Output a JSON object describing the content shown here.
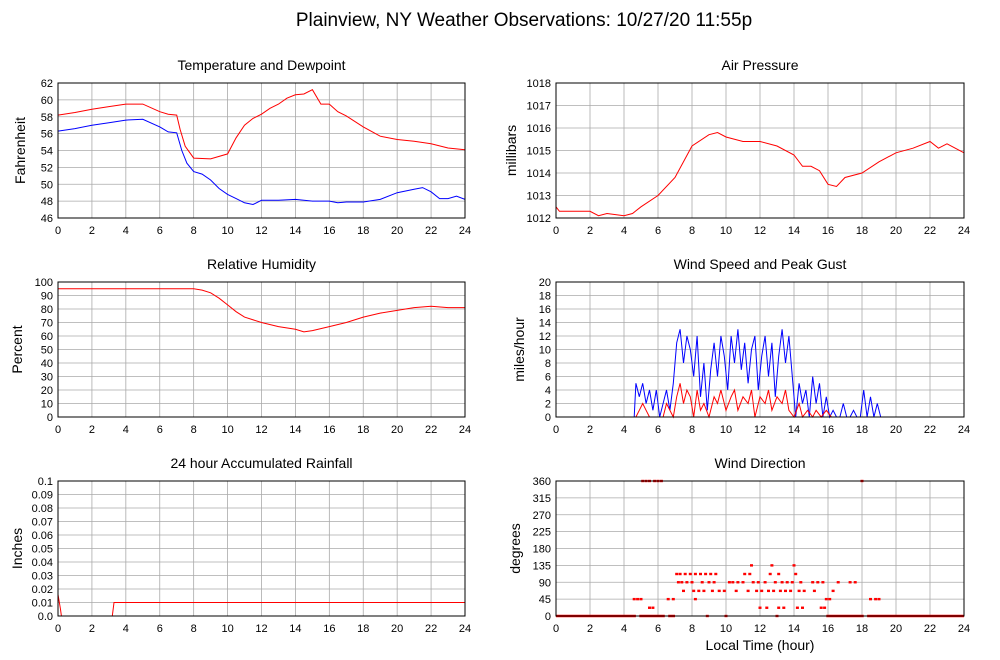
{
  "page_title": "Plainview, NY Weather Observations: 10/27/20 11:55p",
  "x_axis_label": "Local Time (hour)",
  "colors": {
    "red": "#ff0000",
    "blue": "#0000ff",
    "grid": "#aaaaaa",
    "frame": "#000000"
  },
  "chart_data": [
    {
      "id": "temp",
      "type": "line",
      "title": "Temperature and Dewpoint",
      "ylabel": "Fahrenheit",
      "xlim": [
        0,
        24
      ],
      "ylim": [
        46,
        62
      ],
      "xticks": [
        0,
        2,
        4,
        6,
        8,
        10,
        12,
        14,
        16,
        18,
        20,
        22,
        24
      ],
      "yticks": [
        46,
        48,
        50,
        52,
        54,
        56,
        58,
        60,
        62
      ],
      "grid": true,
      "series": [
        {
          "color": "#ff0000",
          "x": [
            0,
            1,
            2,
            3,
            4,
            5,
            6,
            6.5,
            7,
            7.2,
            7.5,
            8,
            9,
            10,
            10.5,
            11,
            11.5,
            12,
            12.5,
            13,
            13.5,
            14,
            14.5,
            15,
            15.5,
            16,
            16.5,
            17,
            18,
            19,
            20,
            21,
            22,
            23,
            24
          ],
          "y": [
            58.2,
            58.5,
            58.9,
            59.2,
            59.5,
            59.5,
            58.6,
            58.3,
            58.2,
            56.5,
            54.5,
            53.1,
            53.0,
            53.6,
            55.5,
            57.0,
            57.8,
            58.3,
            59.0,
            59.5,
            60.2,
            60.6,
            60.7,
            61.2,
            59.5,
            59.5,
            58.6,
            58.1,
            56.8,
            55.7,
            55.3,
            55.1,
            54.8,
            54.3,
            54.1
          ]
        },
        {
          "color": "#0000ff",
          "x": [
            0,
            1,
            2,
            3,
            4,
            5,
            6,
            6.5,
            7,
            7.3,
            7.6,
            8,
            8.5,
            9,
            9.5,
            10,
            10.5,
            11,
            11.5,
            12,
            13,
            14,
            15,
            16,
            16.5,
            17,
            18,
            19,
            20,
            21,
            21.5,
            22,
            22.5,
            23,
            23.5,
            24
          ],
          "y": [
            56.3,
            56.6,
            57.0,
            57.3,
            57.6,
            57.7,
            56.8,
            56.2,
            56.1,
            54.0,
            52.5,
            51.5,
            51.2,
            50.5,
            49.5,
            48.8,
            48.3,
            47.8,
            47.6,
            48.1,
            48.1,
            48.2,
            48.0,
            48.0,
            47.8,
            47.9,
            47.9,
            48.2,
            49.0,
            49.4,
            49.6,
            49.1,
            48.3,
            48.3,
            48.6,
            48.2
          ]
        }
      ]
    },
    {
      "id": "pressure",
      "type": "line",
      "title": "Air Pressure",
      "ylabel": "millibars",
      "xlim": [
        0,
        24
      ],
      "ylim": [
        1012,
        1018
      ],
      "xticks": [
        0,
        2,
        4,
        6,
        8,
        10,
        12,
        14,
        16,
        18,
        20,
        22,
        24
      ],
      "yticks": [
        1012,
        1013,
        1014,
        1015,
        1016,
        1017,
        1018
      ],
      "grid": true,
      "series": [
        {
          "color": "#ff0000",
          "x": [
            0,
            0.2,
            1,
            2,
            2.5,
            3,
            4,
            4.5,
            5,
            6,
            7,
            8,
            9,
            9.5,
            10,
            11,
            12,
            13,
            14,
            14.5,
            15,
            15.5,
            16,
            16.5,
            17,
            18,
            19,
            20,
            21,
            22,
            22.5,
            23,
            24
          ],
          "y": [
            1012.5,
            1012.3,
            1012.3,
            1012.3,
            1012.1,
            1012.2,
            1012.1,
            1012.2,
            1012.5,
            1013.0,
            1013.8,
            1015.2,
            1015.7,
            1015.8,
            1015.6,
            1015.4,
            1015.4,
            1015.2,
            1014.8,
            1014.3,
            1014.3,
            1014.1,
            1013.5,
            1013.4,
            1013.8,
            1014.0,
            1014.5,
            1014.9,
            1015.1,
            1015.4,
            1015.1,
            1015.3,
            1014.9
          ]
        }
      ]
    },
    {
      "id": "humidity",
      "type": "line",
      "title": "Relative Humidity",
      "ylabel": "Percent",
      "xlim": [
        0,
        24
      ],
      "ylim": [
        0,
        100
      ],
      "xticks": [
        0,
        2,
        4,
        6,
        8,
        10,
        12,
        14,
        16,
        18,
        20,
        22,
        24
      ],
      "yticks": [
        0,
        10,
        20,
        30,
        40,
        50,
        60,
        70,
        80,
        90,
        100
      ],
      "grid": true,
      "series": [
        {
          "color": "#ff0000",
          "x": [
            0,
            2,
            4,
            6,
            8,
            8.5,
            9,
            9.5,
            10,
            10.5,
            11,
            12,
            13,
            14,
            14.5,
            15,
            16,
            17,
            18,
            19,
            20,
            21,
            22,
            23,
            24
          ],
          "y": [
            95,
            95,
            95,
            95,
            95,
            94,
            92,
            88,
            83,
            78,
            74,
            70,
            67,
            65,
            63,
            64,
            67,
            70,
            74,
            77,
            79,
            81,
            82,
            81,
            81
          ]
        }
      ]
    },
    {
      "id": "wind",
      "type": "line",
      "title": "Wind Speed and Peak Gust",
      "ylabel": "miles/hour",
      "xlim": [
        0,
        24
      ],
      "ylim": [
        0,
        20
      ],
      "xticks": [
        0,
        2,
        4,
        6,
        8,
        10,
        12,
        14,
        16,
        18,
        20,
        22,
        24
      ],
      "yticks": [
        0,
        2,
        4,
        6,
        8,
        10,
        12,
        14,
        16,
        18,
        20
      ],
      "grid": true,
      "series": [
        {
          "color": "#0000ff",
          "x": [
            0,
            4.6,
            4.7,
            4.9,
            5.1,
            5.3,
            5.5,
            5.7,
            5.9,
            6.1,
            6.3,
            6.5,
            6.7,
            6.9,
            7.1,
            7.3,
            7.5,
            7.7,
            7.9,
            8.1,
            8.3,
            8.5,
            8.7,
            8.9,
            9.1,
            9.3,
            9.5,
            9.7,
            9.9,
            10.1,
            10.3,
            10.5,
            10.7,
            10.9,
            11.1,
            11.3,
            11.5,
            11.7,
            11.9,
            12.1,
            12.3,
            12.5,
            12.7,
            12.9,
            13.1,
            13.3,
            13.5,
            13.7,
            13.9,
            14.1,
            14.3,
            14.5,
            14.7,
            14.9,
            15.1,
            15.3,
            15.5,
            15.7,
            15.9,
            16.1,
            16.3,
            16.5,
            16.7,
            16.9,
            17.1,
            17.3,
            17.5,
            17.7,
            17.9,
            18.1,
            18.3,
            18.5,
            18.7,
            18.9,
            19.1,
            19.3,
            24
          ],
          "y": [
            0,
            0,
            5,
            3,
            5,
            2,
            4,
            1,
            4,
            0,
            2,
            4,
            1,
            5,
            11,
            13,
            8,
            12,
            10,
            6,
            12,
            3,
            8,
            1,
            7,
            11,
            6,
            12,
            9,
            4,
            12,
            8,
            13,
            7,
            11,
            5,
            10,
            12,
            4,
            9,
            12,
            6,
            11,
            3,
            9,
            13,
            8,
            12,
            6,
            0,
            5,
            2,
            4,
            0,
            6,
            2,
            5,
            0,
            3,
            0,
            1,
            0,
            0,
            2,
            0,
            0,
            1,
            0,
            0,
            4,
            0,
            3,
            0,
            2,
            0,
            0,
            0
          ]
        },
        {
          "color": "#ff0000",
          "x": [
            0,
            4.7,
            4.9,
            5.1,
            5.3,
            5.5,
            6.3,
            6.5,
            6.9,
            7.1,
            7.3,
            7.5,
            7.7,
            7.9,
            8.1,
            8.3,
            8.5,
            8.7,
            9.0,
            9.3,
            9.5,
            9.7,
            10.0,
            10.3,
            10.5,
            10.7,
            11.0,
            11.3,
            11.5,
            11.7,
            12.0,
            12.3,
            12.5,
            12.7,
            13.0,
            13.3,
            13.5,
            13.7,
            14.0,
            14.3,
            14.5,
            14.8,
            15.1,
            15.3,
            15.6,
            15.9,
            16.2,
            24
          ],
          "y": [
            0,
            0,
            1,
            2,
            1,
            0,
            0,
            2,
            0,
            3,
            5,
            2,
            4,
            3,
            0,
            4,
            1,
            2,
            0,
            3,
            2,
            4,
            1,
            3,
            4,
            1,
            3,
            2,
            4,
            0,
            3,
            2,
            4,
            1,
            3,
            2,
            4,
            1,
            0,
            2,
            0,
            1,
            0,
            1,
            0,
            1,
            0,
            0
          ]
        }
      ]
    },
    {
      "id": "rain",
      "type": "line",
      "title": "24 hour Accumulated Rainfall",
      "ylabel": "Inches",
      "xlim": [
        0,
        24
      ],
      "ylim": [
        0,
        0.1
      ],
      "xticks": [
        0,
        2,
        4,
        6,
        8,
        10,
        12,
        14,
        16,
        18,
        20,
        22,
        24
      ],
      "yticks": [
        0.0,
        0.01,
        0.02,
        0.03,
        0.04,
        0.05,
        0.06,
        0.07,
        0.08,
        0.09,
        0.1
      ],
      "grid": true,
      "series": [
        {
          "color": "#ff0000",
          "x": [
            0,
            0.15,
            0.2,
            3.2,
            3.3,
            3.4,
            24
          ],
          "y": [
            0.016,
            0.005,
            0,
            0,
            0.01,
            0.01,
            0.01
          ]
        }
      ]
    },
    {
      "id": "direction",
      "type": "scatter",
      "title": "Wind Direction",
      "ylabel": "degrees",
      "xlabel": "Local Time (hour)",
      "xlim": [
        0,
        24
      ],
      "ylim": [
        0,
        360
      ],
      "xticks": [
        0,
        2,
        4,
        6,
        8,
        10,
        12,
        14,
        16,
        18,
        20,
        22,
        24
      ],
      "yticks": [
        0,
        45,
        90,
        135,
        180,
        225,
        270,
        315,
        360
      ],
      "grid": true,
      "series": [
        {
          "color": "#ff0000",
          "points": [
            [
              5.1,
              360
            ],
            [
              5.3,
              360
            ],
            [
              5.5,
              360
            ],
            [
              5.8,
              360
            ],
            [
              6.0,
              360
            ],
            [
              6.2,
              360
            ],
            [
              18.0,
              360
            ],
            [
              4.6,
              45
            ],
            [
              4.8,
              45
            ],
            [
              5.0,
              45
            ],
            [
              6.6,
              45
            ],
            [
              6.9,
              45
            ],
            [
              8.2,
              45
            ],
            [
              15.9,
              45
            ],
            [
              16.1,
              45
            ],
            [
              18.5,
              45
            ],
            [
              18.8,
              45
            ],
            [
              19.0,
              45
            ],
            [
              5.5,
              22
            ],
            [
              5.7,
              22
            ],
            [
              12.0,
              22
            ],
            [
              12.4,
              22
            ],
            [
              13.1,
              22
            ],
            [
              13.4,
              22
            ],
            [
              14.2,
              22
            ],
            [
              14.5,
              22
            ],
            [
              15.6,
              22
            ],
            [
              15.8,
              22
            ],
            [
              7.1,
              112
            ],
            [
              7.3,
              112
            ],
            [
              7.6,
              112
            ],
            [
              7.9,
              112
            ],
            [
              8.2,
              112
            ],
            [
              8.5,
              112
            ],
            [
              8.8,
              112
            ],
            [
              9.1,
              112
            ],
            [
              9.4,
              112
            ],
            [
              11.1,
              112
            ],
            [
              11.4,
              112
            ],
            [
              12.6,
              112
            ],
            [
              13.1,
              112
            ],
            [
              14.1,
              112
            ],
            [
              7.2,
              90
            ],
            [
              7.4,
              90
            ],
            [
              7.7,
              90
            ],
            [
              8.0,
              90
            ],
            [
              8.6,
              90
            ],
            [
              9.0,
              90
            ],
            [
              9.3,
              90
            ],
            [
              10.2,
              90
            ],
            [
              10.4,
              90
            ],
            [
              10.7,
              90
            ],
            [
              11.0,
              90
            ],
            [
              11.6,
              90
            ],
            [
              11.9,
              90
            ],
            [
              12.3,
              90
            ],
            [
              12.9,
              90
            ],
            [
              13.3,
              90
            ],
            [
              13.6,
              90
            ],
            [
              13.9,
              90
            ],
            [
              14.4,
              90
            ],
            [
              15.1,
              90
            ],
            [
              15.4,
              90
            ],
            [
              15.7,
              90
            ],
            [
              16.6,
              90
            ],
            [
              17.3,
              90
            ],
            [
              17.6,
              90
            ],
            [
              7.5,
              67
            ],
            [
              8.1,
              67
            ],
            [
              8.4,
              67
            ],
            [
              8.7,
              67
            ],
            [
              9.2,
              67
            ],
            [
              9.6,
              67
            ],
            [
              9.9,
              67
            ],
            [
              10.6,
              67
            ],
            [
              11.3,
              67
            ],
            [
              11.8,
              67
            ],
            [
              12.1,
              67
            ],
            [
              12.5,
              67
            ],
            [
              12.8,
              67
            ],
            [
              13.2,
              67
            ],
            [
              13.5,
              67
            ],
            [
              13.8,
              67
            ],
            [
              14.3,
              67
            ],
            [
              14.6,
              67
            ],
            [
              15.2,
              67
            ],
            [
              16.3,
              67
            ],
            [
              11.5,
              135
            ],
            [
              12.7,
              135
            ],
            [
              14.0,
              135
            ],
            [
              8.9,
              0
            ],
            [
              10.0,
              0
            ],
            [
              13.0,
              0
            ]
          ],
          "baseline_ranges": [
            [
              0,
              4.7
            ],
            [
              4.9,
              6.4
            ],
            [
              6.6,
              7.0
            ],
            [
              15.9,
              18.1
            ],
            [
              18.3,
              24
            ]
          ]
        }
      ]
    }
  ]
}
